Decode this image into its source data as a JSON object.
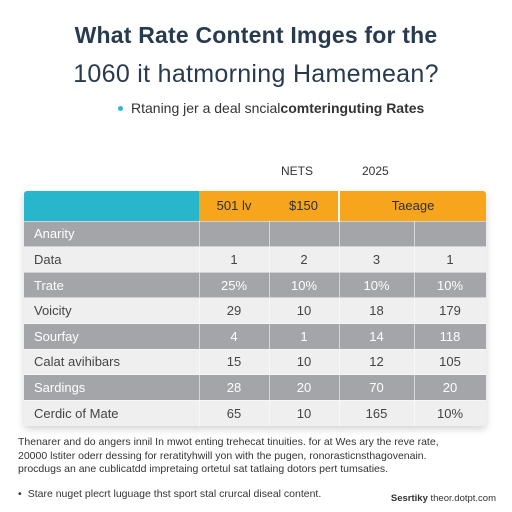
{
  "header": {
    "title_line1": "What Rate Content Imges for the",
    "title_line2": "1060 it hatmorning Hamemean?",
    "subtitle_plain": "Rtaning jer a deal sncial ",
    "subtitle_bold": "comteringuting Rates"
  },
  "column_headers_above": {
    "a": "NETS",
    "b": "2025"
  },
  "table": {
    "header": [
      "",
      "501 lv",
      "$150",
      "Taeage"
    ],
    "rows": [
      {
        "label": "Anarity",
        "values": [
          "",
          "",
          "",
          ""
        ],
        "style": "dark"
      },
      {
        "label": "Data",
        "values": [
          "1",
          "2",
          "3",
          "1"
        ],
        "style": "light"
      },
      {
        "label": "Trate",
        "values": [
          "25%",
          "10%",
          "10%",
          "10%"
        ],
        "style": "dark"
      },
      {
        "label": "Voicity",
        "values": [
          "29",
          "10",
          "18",
          "179"
        ],
        "style": "light"
      },
      {
        "label": "Sourfay",
        "values": [
          "4",
          "1",
          "14",
          "118"
        ],
        "style": "dark"
      },
      {
        "label": "Calat avihibars",
        "values": [
          "15",
          "10",
          "12",
          "105"
        ],
        "style": "light"
      },
      {
        "label": "Sardings",
        "values": [
          "28",
          "20",
          "70",
          "20"
        ],
        "style": "dark"
      },
      {
        "label": "Cerdic of Mate",
        "values": [
          "65",
          "10",
          "165",
          "10%"
        ],
        "style": "light"
      }
    ]
  },
  "notes": {
    "line1": "Thenarer and do angers innil In mwot enting trehecat tinuities. for at Wes ary the reve rate,",
    "line2": "20000 lstiter oderr dessing for reratityhwill yon with the pugen, ronorasticnsthagovenain.",
    "line3": "procdugs an ane cublicatdd impretaing ortetul sat tatlaing dotors pert tumsaties.",
    "bullet": "Stare nuget plecrt luguage thst sport stal crurcal diseal content.",
    "credit_bold": "Sesrtiky",
    "credit_plain": " theor.dotpt.com"
  },
  "colors": {
    "teal": "#27b6cc",
    "orange": "#f7a51d",
    "row_dark": "#a3a5a8",
    "row_light": "#efefef",
    "title": "#283a4e"
  }
}
